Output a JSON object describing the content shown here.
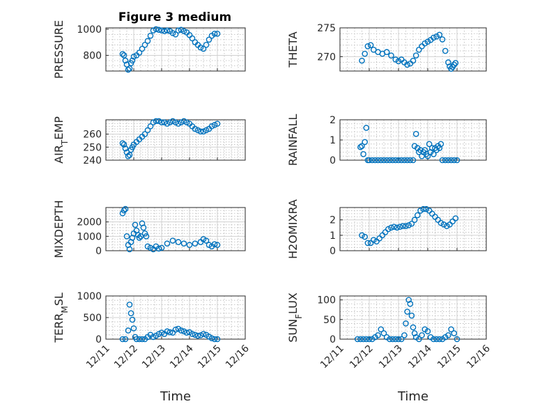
{
  "figure_title": "Figure 3 medium",
  "colors": {
    "marker": "#0072BD"
  },
  "x_ticks": [
    "12/11",
    "12/12",
    "12/13",
    "12/14",
    "12/15",
    "12/16"
  ],
  "x_label": "Time",
  "chart_data": [
    {
      "type": "scatter",
      "name": "pressure",
      "ylabel": "PRESSURE",
      "ylim": [
        680,
        1010
      ],
      "yticks": [
        800,
        1000
      ],
      "xlim": [
        "12/11",
        "12/16"
      ],
      "grid": "on (major and minor)",
      "x": [
        1.6,
        1.65,
        1.7,
        1.75,
        1.8,
        1.85,
        1.9,
        1.95,
        2.0,
        2.1,
        2.2,
        2.3,
        2.4,
        2.5,
        2.6,
        2.7,
        2.8,
        2.9,
        3.0,
        3.1,
        3.2,
        3.3,
        3.4,
        3.5,
        3.6,
        3.7,
        3.8,
        3.9,
        4.0,
        4.1,
        4.2,
        4.3,
        4.4,
        4.5,
        4.6,
        4.7,
        4.8,
        4.9,
        5.0
      ],
      "y": [
        810,
        800,
        760,
        730,
        690,
        700,
        740,
        760,
        790,
        800,
        820,
        850,
        880,
        910,
        950,
        990,
        1000,
        995,
        990,
        985,
        990,
        985,
        970,
        960,
        990,
        995,
        985,
        975,
        955,
        930,
        900,
        880,
        860,
        850,
        880,
        920,
        950,
        965,
        965
      ]
    },
    {
      "type": "scatter",
      "name": "theta",
      "ylabel": "THETA",
      "ylim": [
        267.5,
        275
      ],
      "yticks": [
        270,
        275
      ],
      "xlim": [
        "12/11",
        "12/16"
      ],
      "grid": "on (major and minor)",
      "x": [
        1.75,
        1.85,
        1.95,
        2.05,
        2.15,
        2.3,
        2.45,
        2.6,
        2.75,
        2.9,
        3.0,
        3.1,
        3.2,
        3.3,
        3.4,
        3.5,
        3.6,
        3.7,
        3.8,
        3.9,
        4.0,
        4.1,
        4.2,
        4.3,
        4.4,
        4.5,
        4.6,
        4.7,
        4.75,
        4.8,
        4.85,
        4.9,
        4.95
      ],
      "y": [
        269.3,
        270.5,
        271.8,
        272.0,
        271.2,
        270.8,
        270.5,
        270.8,
        270.2,
        269.5,
        269.2,
        269.5,
        269.0,
        268.6,
        268.8,
        269.3,
        270.2,
        271.2,
        271.8,
        272.3,
        272.6,
        272.9,
        273.3,
        273.5,
        273.8,
        273.0,
        271.0,
        269.0,
        268.3,
        267.9,
        268.2,
        268.6,
        268.9
      ]
    },
    {
      "type": "scatter",
      "name": "air_temp",
      "ylabel": "AIR_TEMP",
      "ylim": [
        240,
        271
      ],
      "yticks": [
        240,
        250,
        260
      ],
      "xlim": [
        "12/11",
        "12/16"
      ],
      "grid": "on (major and minor)",
      "x": [
        1.6,
        1.65,
        1.7,
        1.75,
        1.8,
        1.85,
        1.9,
        1.95,
        2.0,
        2.1,
        2.2,
        2.3,
        2.4,
        2.5,
        2.6,
        2.7,
        2.8,
        2.9,
        3.0,
        3.1,
        3.2,
        3.3,
        3.4,
        3.5,
        3.6,
        3.7,
        3.8,
        3.9,
        4.0,
        4.1,
        4.2,
        4.3,
        4.4,
        4.5,
        4.6,
        4.7,
        4.8,
        4.9,
        5.0
      ],
      "y": [
        253,
        252,
        249,
        246,
        243,
        244,
        248,
        250,
        252,
        254,
        256,
        258,
        260,
        263,
        266,
        269,
        270,
        270,
        269,
        269,
        268,
        269,
        270,
        269,
        268,
        269,
        270,
        269,
        268,
        266,
        264,
        263,
        262,
        262,
        263,
        264,
        266,
        267,
        268
      ]
    },
    {
      "type": "scatter",
      "name": "rainfall",
      "ylabel": "RAINFALL",
      "ylim": [
        0,
        2
      ],
      "yticks": [
        0,
        1,
        2
      ],
      "xlim": [
        "12/11",
        "12/16"
      ],
      "grid": "on (major and minor)",
      "x": [
        1.7,
        1.75,
        1.8,
        1.85,
        1.9,
        1.95,
        2.0,
        2.1,
        2.2,
        2.3,
        2.4,
        2.5,
        2.6,
        2.7,
        2.8,
        2.9,
        3.0,
        3.1,
        3.2,
        3.3,
        3.4,
        3.5,
        3.55,
        3.6,
        3.65,
        3.7,
        3.75,
        3.8,
        3.85,
        3.9,
        3.95,
        4.0,
        4.05,
        4.1,
        4.15,
        4.2,
        4.25,
        4.3,
        4.35,
        4.4,
        4.45,
        4.5,
        4.6,
        4.7,
        4.8,
        4.9,
        5.0
      ],
      "y": [
        0.65,
        0.7,
        0.3,
        0.9,
        1.6,
        0.0,
        0.0,
        0.0,
        0.0,
        0.0,
        0.0,
        0.0,
        0.0,
        0.0,
        0.0,
        0.0,
        0.0,
        0.0,
        0.0,
        0.0,
        0.0,
        0.0,
        0.7,
        1.3,
        0.6,
        0.4,
        0.5,
        0.2,
        0.4,
        0.5,
        0.3,
        0.2,
        0.8,
        0.4,
        0.6,
        0.3,
        0.6,
        0.5,
        0.7,
        0.6,
        0.8,
        0.0,
        0.0,
        0.0,
        0.0,
        0.0,
        0.0
      ]
    },
    {
      "type": "scatter",
      "name": "mixdepth",
      "ylabel": "MIXDEPTH",
      "ylim": [
        0,
        3000
      ],
      "yticks": [
        0,
        1000,
        2000
      ],
      "xlim": [
        "12/11",
        "12/16"
      ],
      "grid": "on (major and minor)",
      "x": [
        1.6,
        1.65,
        1.7,
        1.75,
        1.8,
        1.85,
        1.9,
        1.95,
        2.0,
        2.05,
        2.1,
        2.15,
        2.2,
        2.25,
        2.3,
        2.35,
        2.4,
        2.45,
        2.5,
        2.6,
        2.7,
        2.8,
        2.9,
        3.0,
        3.2,
        3.4,
        3.6,
        3.8,
        4.0,
        4.2,
        4.4,
        4.5,
        4.6,
        4.7,
        4.8,
        4.9,
        5.0
      ],
      "y": [
        2600,
        2800,
        2900,
        1000,
        400,
        100,
        600,
        900,
        1200,
        1800,
        1400,
        1100,
        900,
        1000,
        1900,
        1600,
        1200,
        1000,
        300,
        200,
        100,
        300,
        150,
        200,
        500,
        700,
        600,
        500,
        400,
        500,
        600,
        800,
        700,
        400,
        300,
        450,
        400
      ]
    },
    {
      "type": "scatter",
      "name": "h2omixra",
      "ylabel": "H2OMIXRA",
      "ylim": [
        0,
        2.8
      ],
      "yticks": [
        0,
        1,
        2
      ],
      "xlim": [
        "12/11",
        "12/16"
      ],
      "grid": "on (major and minor)",
      "x": [
        1.75,
        1.85,
        1.95,
        2.05,
        2.15,
        2.25,
        2.35,
        2.45,
        2.55,
        2.65,
        2.75,
        2.85,
        2.95,
        3.05,
        3.15,
        3.25,
        3.35,
        3.45,
        3.55,
        3.65,
        3.75,
        3.85,
        3.95,
        4.05,
        4.15,
        4.25,
        4.35,
        4.45,
        4.55,
        4.65,
        4.75,
        4.85,
        4.95
      ],
      "y": [
        1.0,
        0.9,
        0.5,
        0.5,
        0.7,
        0.6,
        0.8,
        1.0,
        1.2,
        1.4,
        1.5,
        1.55,
        1.5,
        1.55,
        1.6,
        1.6,
        1.65,
        1.75,
        2.0,
        2.3,
        2.6,
        2.7,
        2.7,
        2.6,
        2.4,
        2.2,
        2.0,
        1.8,
        1.7,
        1.6,
        1.7,
        1.9,
        2.1
      ]
    },
    {
      "type": "scatter",
      "name": "terr_msl",
      "ylabel": "TERR_MSL",
      "ylim": [
        0,
        1000
      ],
      "yticks": [
        0,
        500,
        1000
      ],
      "xlim": [
        "12/11",
        "12/16"
      ],
      "grid": "on (major and minor)",
      "x": [
        1.6,
        1.7,
        1.8,
        1.85,
        1.9,
        1.95,
        2.0,
        2.05,
        2.1,
        2.2,
        2.3,
        2.4,
        2.5,
        2.6,
        2.7,
        2.8,
        2.9,
        3.0,
        3.1,
        3.2,
        3.3,
        3.4,
        3.5,
        3.6,
        3.7,
        3.8,
        3.9,
        4.0,
        4.1,
        4.2,
        4.3,
        4.4,
        4.5,
        4.6,
        4.7,
        4.8,
        4.9,
        5.0
      ],
      "y": [
        0,
        0,
        200,
        800,
        600,
        450,
        250,
        50,
        0,
        0,
        0,
        0,
        50,
        100,
        50,
        80,
        120,
        150,
        120,
        180,
        160,
        150,
        220,
        240,
        200,
        180,
        150,
        160,
        120,
        100,
        80,
        90,
        120,
        100,
        60,
        20,
        0,
        0
      ]
    },
    {
      "type": "scatter",
      "name": "sun_flux",
      "ylabel": "SUN_FLUX",
      "ylim": [
        0,
        110
      ],
      "yticks": [
        0,
        50,
        100
      ],
      "xlim": [
        "12/11",
        "12/16"
      ],
      "grid": "on (major and minor)",
      "x": [
        1.6,
        1.7,
        1.8,
        1.9,
        2.0,
        2.1,
        2.2,
        2.3,
        2.4,
        2.5,
        2.6,
        2.7,
        2.8,
        2.9,
        3.0,
        3.1,
        3.2,
        3.25,
        3.3,
        3.35,
        3.4,
        3.45,
        3.5,
        3.55,
        3.6,
        3.7,
        3.8,
        3.9,
        4.0,
        4.1,
        4.2,
        4.3,
        4.4,
        4.5,
        4.6,
        4.7,
        4.8,
        4.9,
        5.0
      ],
      "y": [
        0,
        0,
        0,
        0,
        0,
        0,
        5,
        10,
        25,
        15,
        5,
        0,
        0,
        0,
        0,
        0,
        10,
        40,
        70,
        100,
        90,
        60,
        30,
        15,
        5,
        0,
        10,
        25,
        20,
        5,
        0,
        0,
        0,
        0,
        5,
        10,
        25,
        15,
        0
      ]
    }
  ]
}
